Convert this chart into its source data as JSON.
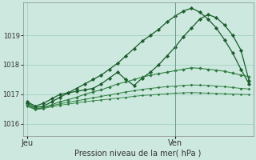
{
  "background_color": "#cce8df",
  "grid_color": "#99ccbb",
  "line_color_dark": "#1a5c2a",
  "line_color_mid": "#2a7a3a",
  "xlabel": "Pression niveau de la mer( hPa )",
  "yticks": [
    1016,
    1017,
    1018,
    1019
  ],
  "ylim": [
    1015.6,
    1020.1
  ],
  "xtick_labels": [
    "Jeu",
    "Ven"
  ],
  "total_points": 28,
  "vline_x": 18,
  "series1": [
    1016.7,
    1016.55,
    1016.6,
    1016.75,
    1016.9,
    1017.05,
    1017.2,
    1017.35,
    1017.5,
    1017.65,
    1017.85,
    1018.05,
    1018.3,
    1018.55,
    1018.8,
    1019.0,
    1019.2,
    1019.45,
    1019.65,
    1019.82,
    1019.92,
    1019.78,
    1019.55,
    1019.25,
    1018.85,
    1018.4,
    1017.85,
    1017.35
  ],
  "series2": [
    1016.75,
    1016.6,
    1016.7,
    1016.85,
    1017.0,
    1017.05,
    1017.1,
    1017.15,
    1017.2,
    1017.35,
    1017.55,
    1017.75,
    1017.5,
    1017.3,
    1017.55,
    1017.75,
    1018.0,
    1018.3,
    1018.6,
    1018.95,
    1019.25,
    1019.55,
    1019.7,
    1019.6,
    1019.35,
    1019.0,
    1018.5,
    1017.45
  ],
  "series3": [
    1016.65,
    1016.5,
    1016.55,
    1016.65,
    1016.75,
    1016.82,
    1016.9,
    1017.0,
    1017.08,
    1017.15,
    1017.25,
    1017.35,
    1017.42,
    1017.5,
    1017.58,
    1017.65,
    1017.7,
    1017.75,
    1017.8,
    1017.85,
    1017.9,
    1017.88,
    1017.85,
    1017.82,
    1017.78,
    1017.72,
    1017.65,
    1017.6
  ],
  "series4": [
    1016.62,
    1016.5,
    1016.55,
    1016.62,
    1016.68,
    1016.73,
    1016.78,
    1016.83,
    1016.88,
    1016.93,
    1016.98,
    1017.03,
    1017.08,
    1017.12,
    1017.17,
    1017.2,
    1017.23,
    1017.26,
    1017.28,
    1017.3,
    1017.32,
    1017.31,
    1017.3,
    1017.28,
    1017.26,
    1017.23,
    1017.2,
    1017.18
  ],
  "series5": [
    1016.6,
    1016.48,
    1016.52,
    1016.58,
    1016.63,
    1016.67,
    1016.71,
    1016.75,
    1016.78,
    1016.81,
    1016.84,
    1016.87,
    1016.9,
    1016.93,
    1016.96,
    1016.98,
    1017.0,
    1017.02,
    1017.04,
    1017.05,
    1017.06,
    1017.05,
    1017.04,
    1017.03,
    1017.02,
    1017.01,
    1017.0,
    1016.99
  ]
}
